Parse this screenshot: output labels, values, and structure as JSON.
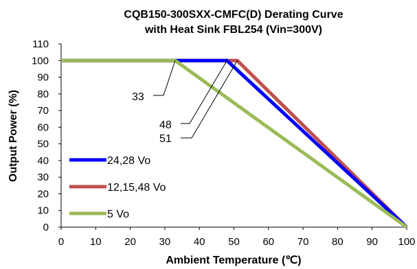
{
  "chart_data": {
    "type": "line",
    "title": [
      "CQB150-300SXX-CMFC(D)  Derating Curve",
      "with Heat Sink FBL254 (Vin=300V)"
    ],
    "xlabel": "Ambient Temperature (℃)",
    "ylabel": "Output Power (%)",
    "xlim": [
      0,
      100
    ],
    "ylim": [
      0,
      110
    ],
    "xticks": [
      0,
      10,
      20,
      30,
      40,
      50,
      60,
      70,
      80,
      90,
      100
    ],
    "yticks": [
      0,
      10,
      20,
      30,
      40,
      50,
      60,
      70,
      80,
      90,
      100,
      110
    ],
    "grid": false,
    "legend_position": "bottom-left",
    "series": [
      {
        "name": "24,28 Vo",
        "color": "#0000ff",
        "x": [
          0,
          48,
          100
        ],
        "y": [
          100,
          100,
          0
        ]
      },
      {
        "name": "12,15,48 Vo",
        "color": "#c0504d",
        "x": [
          0,
          51,
          100
        ],
        "y": [
          100,
          100,
          0
        ]
      },
      {
        "name": "5 Vo",
        "color": "#9bbb59",
        "x": [
          0,
          33,
          100
        ],
        "y": [
          100,
          100,
          0
        ]
      }
    ],
    "annotations": [
      {
        "text": "33",
        "x": 33,
        "y": 100
      },
      {
        "text": "48",
        "x": 48,
        "y": 100
      },
      {
        "text": "51",
        "x": 51,
        "y": 100
      }
    ]
  }
}
